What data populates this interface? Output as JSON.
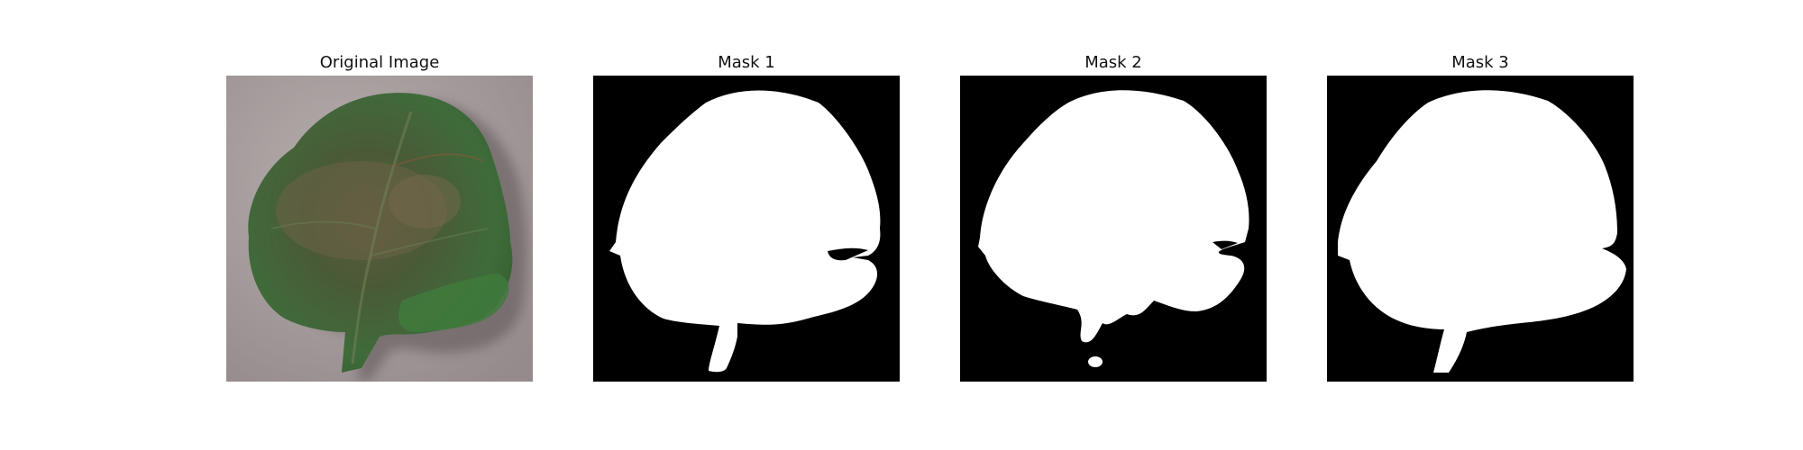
{
  "panels": [
    {
      "title": "Original Image",
      "kind": "photo"
    },
    {
      "title": "Mask 1",
      "kind": "mask"
    },
    {
      "title": "Mask 2",
      "kind": "mask"
    },
    {
      "title": "Mask 3",
      "kind": "mask"
    }
  ],
  "colors": {
    "background": "#ffffff",
    "mask_foreground": "#ffffff",
    "mask_background": "#000000",
    "leaf_green": "#4f7a43",
    "leaf_dark": "#3e4a31",
    "surface_gray": "#a79e9f"
  }
}
